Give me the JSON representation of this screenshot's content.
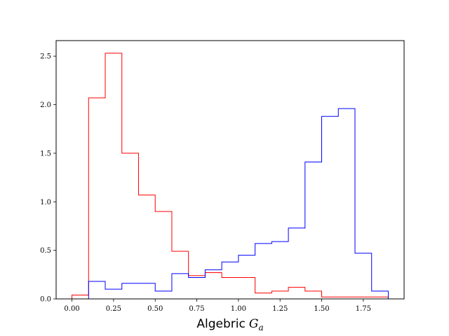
{
  "chart_data": {
    "type": "histogram-step",
    "xlabel": "Algebric",
    "xlabel_math_symbol": "G",
    "xlabel_math_subscript": "a",
    "xlim": [
      -0.095,
      1.995
    ],
    "ylim": [
      0,
      2.66
    ],
    "xticks": [
      0.0,
      0.25,
      0.5,
      0.75,
      1.0,
      1.25,
      1.5,
      1.75
    ],
    "xtick_labels": [
      "0.00",
      "0.25",
      "0.50",
      "0.75",
      "1.00",
      "1.25",
      "1.50",
      "1.75"
    ],
    "yticks": [
      0.0,
      0.5,
      1.0,
      1.5,
      2.0,
      2.5
    ],
    "ytick_labels": [
      "0.0",
      "0.5",
      "1.0",
      "1.5",
      "2.0",
      "2.5"
    ],
    "grid": false,
    "bin_edges": [
      0.0,
      0.1,
      0.2,
      0.3,
      0.4,
      0.5,
      0.6,
      0.7,
      0.8,
      0.9,
      1.0,
      1.1,
      1.2,
      1.3,
      1.4,
      1.5,
      1.6,
      1.7,
      1.8,
      1.9
    ],
    "series": [
      {
        "color": "#ff0000",
        "values": [
          0.04,
          2.07,
          2.53,
          1.5,
          1.07,
          0.9,
          0.49,
          0.24,
          0.27,
          0.22,
          0.22,
          0.06,
          0.08,
          0.12,
          0.08,
          0.02,
          0.02,
          0.02,
          0.02
        ]
      },
      {
        "color": "#0000ff",
        "values": [
          0.0,
          0.18,
          0.1,
          0.16,
          0.16,
          0.08,
          0.26,
          0.22,
          0.3,
          0.38,
          0.45,
          0.57,
          0.59,
          0.73,
          1.41,
          1.88,
          1.96,
          0.47,
          0.08
        ]
      }
    ]
  }
}
